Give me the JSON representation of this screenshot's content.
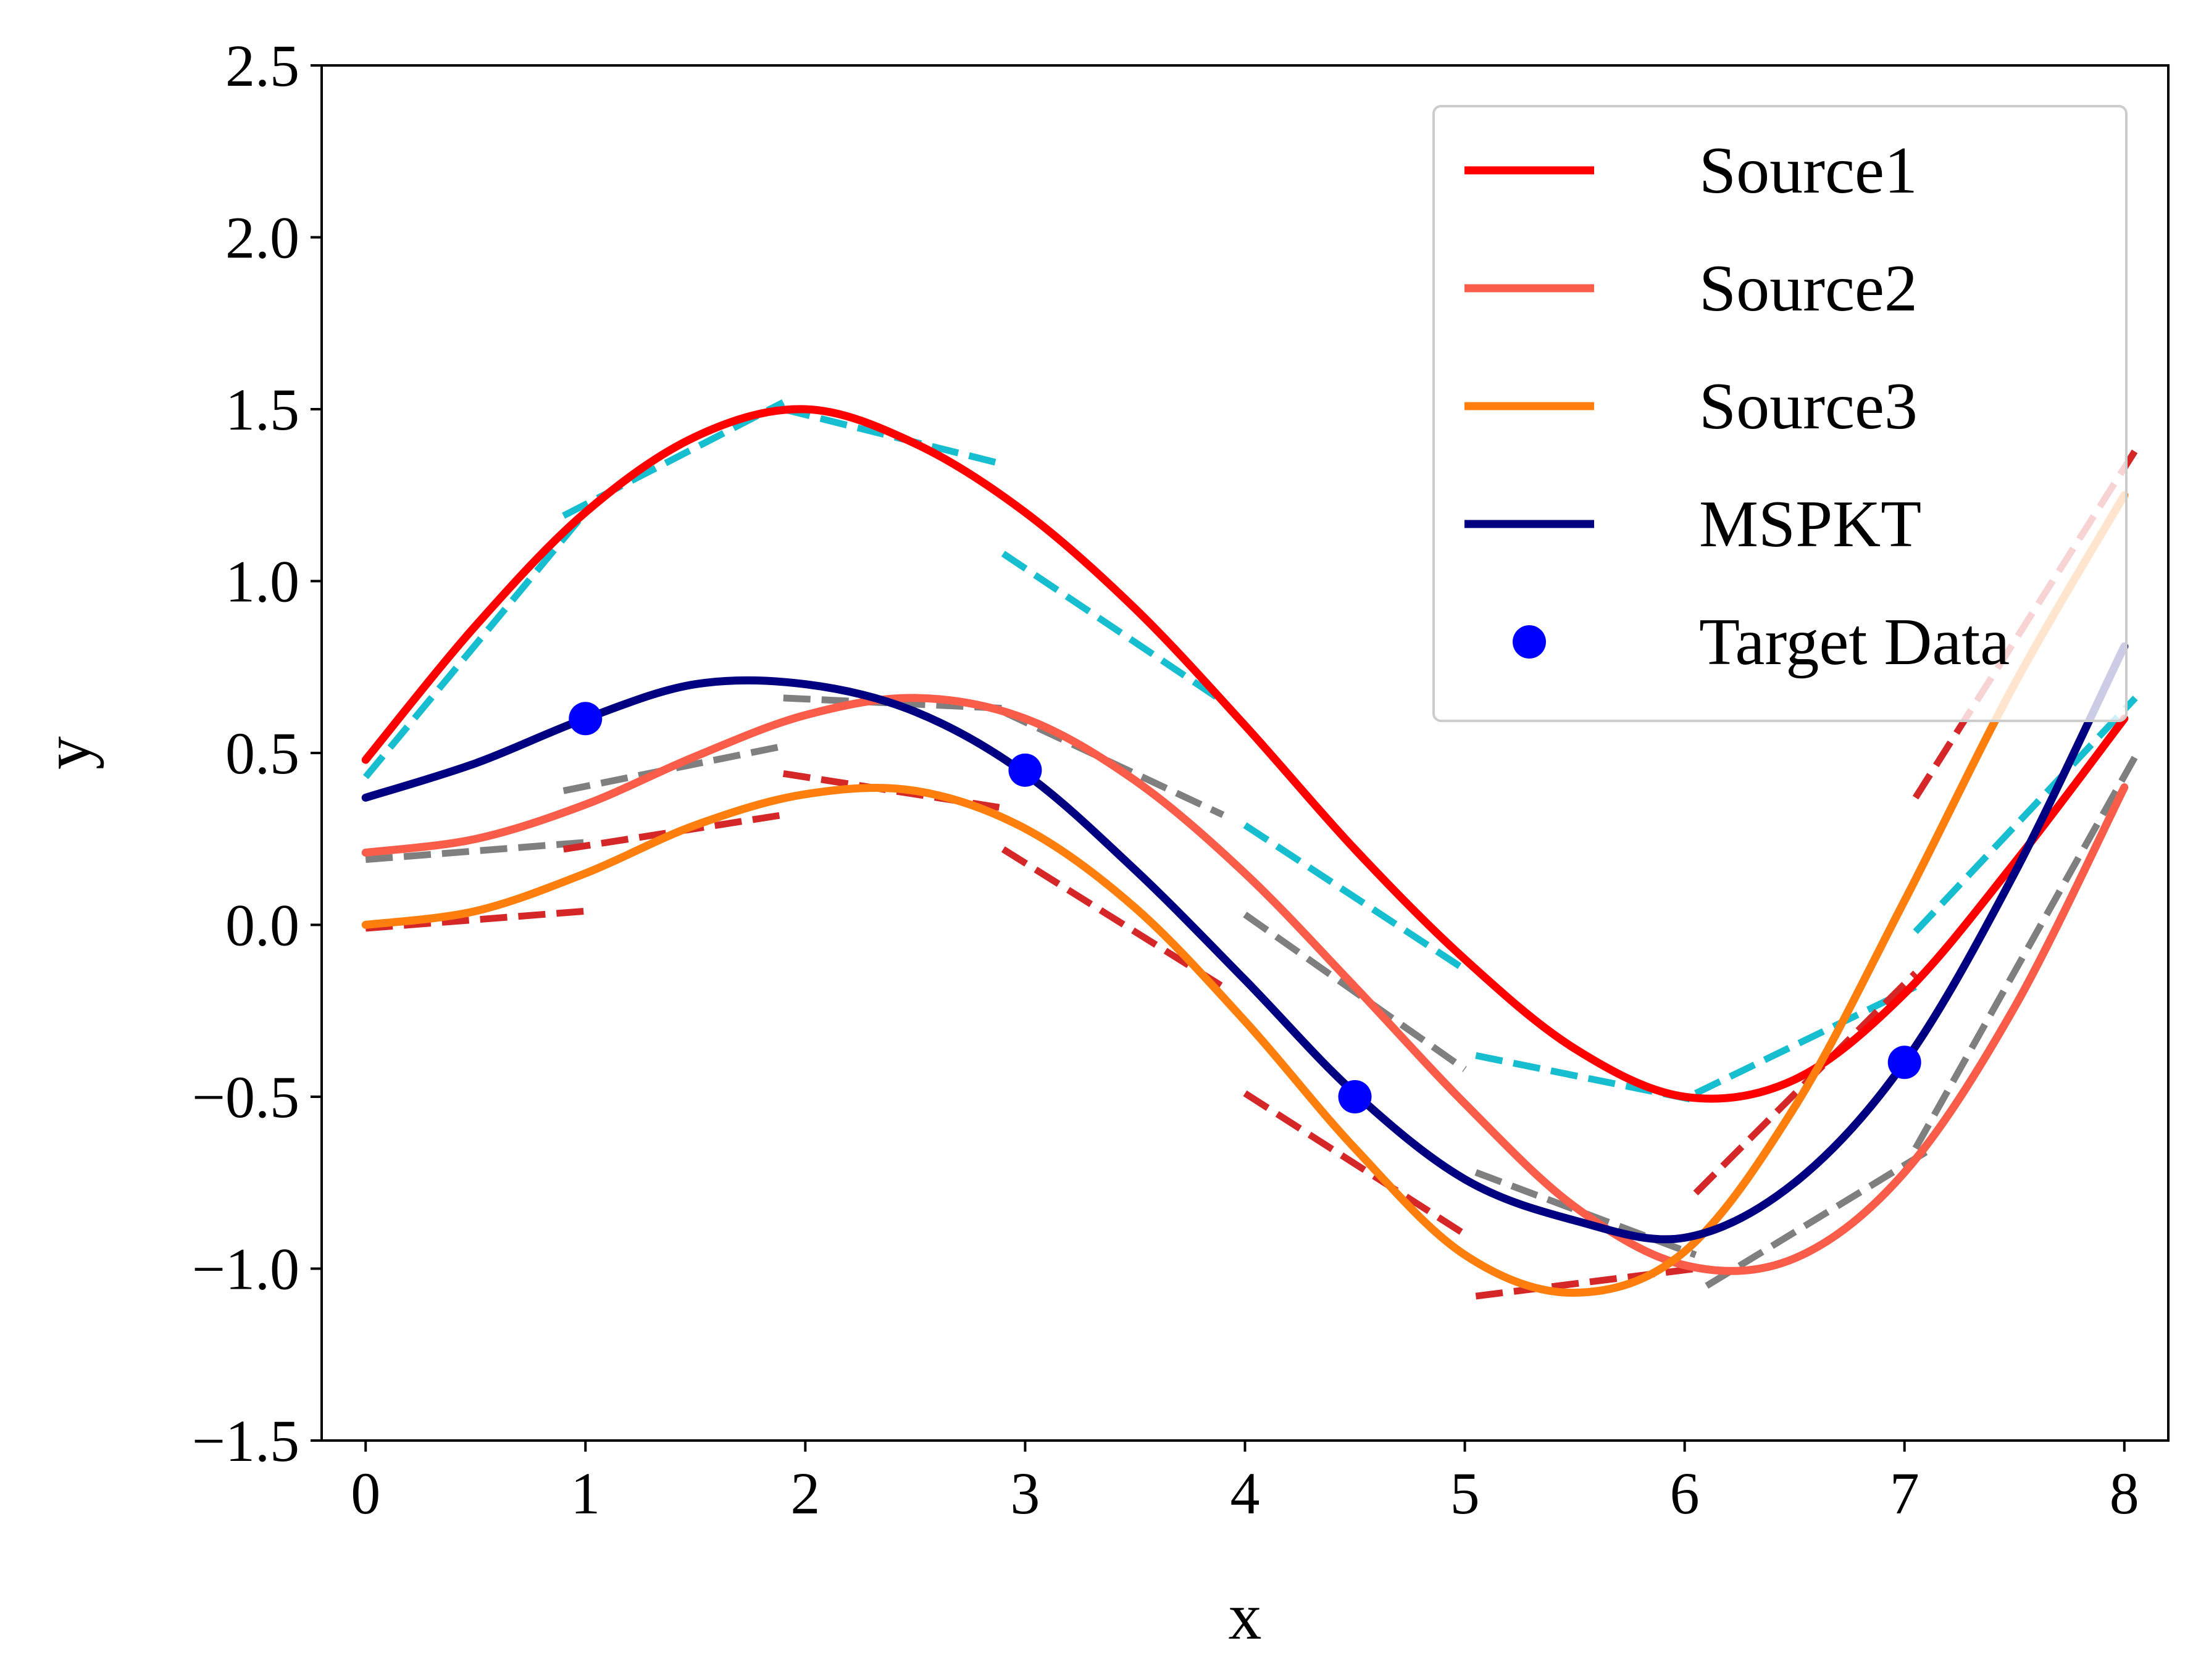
{
  "chart_data": {
    "type": "line",
    "title": "",
    "xlabel": "x",
    "ylabel": "y",
    "xlim": [
      -0.2,
      8.2
    ],
    "ylim": [
      -1.5,
      2.5
    ],
    "xticks": [
      "0",
      "1",
      "2",
      "3",
      "4",
      "5",
      "6",
      "7",
      "8"
    ],
    "yticks": [
      "−1.5",
      "−1.0",
      "−0.5",
      "0.0",
      "0.5",
      "1.0",
      "1.5",
      "2.0",
      "2.5"
    ],
    "grid": false,
    "legend_position": "top-right",
    "series": [
      {
        "name": "Source1",
        "color": "#ff0000",
        "style": "solid",
        "x": [
          0,
          0.5,
          1,
          1.5,
          2,
          2.5,
          3,
          3.5,
          4,
          4.5,
          5,
          5.5,
          6,
          6.5,
          7,
          7.5,
          8
        ],
        "y": [
          0.48,
          0.87,
          1.2,
          1.42,
          1.5,
          1.4,
          1.2,
          0.92,
          0.58,
          0.22,
          -0.1,
          -0.36,
          -0.5,
          -0.45,
          -0.2,
          0.18,
          0.6
        ]
      },
      {
        "name": "Source2",
        "color": "#f95d4a",
        "style": "solid",
        "x": [
          0,
          0.5,
          1,
          1.5,
          2,
          2.5,
          3,
          3.5,
          4,
          4.5,
          5,
          5.5,
          6,
          6.5,
          7,
          7.5,
          8
        ],
        "y": [
          0.21,
          0.25,
          0.35,
          0.49,
          0.61,
          0.66,
          0.6,
          0.42,
          0.15,
          -0.18,
          -0.52,
          -0.82,
          -0.99,
          -0.97,
          -0.72,
          -0.24,
          0.4
        ]
      },
      {
        "name": "Source3",
        "color": "#ff7f0e",
        "style": "solid",
        "x": [
          0,
          0.5,
          1,
          1.5,
          2,
          2.5,
          3,
          3.5,
          4,
          4.5,
          5,
          5.5,
          6,
          6.5,
          7,
          7.5,
          8
        ],
        "y": [
          0.0,
          0.04,
          0.15,
          0.29,
          0.38,
          0.39,
          0.28,
          0.05,
          -0.28,
          -0.65,
          -0.96,
          -1.07,
          -0.95,
          -0.53,
          0.07,
          0.7,
          1.25
        ]
      },
      {
        "name": "MSPKT",
        "color": "#000080",
        "style": "solid",
        "x": [
          0,
          0.5,
          1,
          1.5,
          2,
          2.5,
          3,
          3.5,
          4,
          4.5,
          5,
          5.5,
          6,
          6.5,
          7,
          7.5,
          8
        ],
        "y": [
          0.37,
          0.47,
          0.6,
          0.7,
          0.7,
          0.62,
          0.44,
          0.16,
          -0.16,
          -0.49,
          -0.74,
          -0.86,
          -0.91,
          -0.75,
          -0.4,
          0.15,
          0.81
        ]
      }
    ],
    "scatter": {
      "name": "Target Data",
      "color": "#0000ff",
      "x": [
        1,
        3,
        4.5,
        7
      ],
      "y": [
        0.6,
        0.45,
        -0.5,
        -0.4
      ]
    },
    "dashed_segments": [
      {
        "color": "#17becf",
        "x": [
          0,
          1
        ],
        "y": [
          0.43,
          1.2
        ]
      },
      {
        "color": "#17becf",
        "x": [
          0.9,
          1.9
        ],
        "y": [
          1.19,
          1.52
        ]
      },
      {
        "color": "#17becf",
        "x": [
          1.9,
          2.9
        ],
        "y": [
          1.5,
          1.34
        ]
      },
      {
        "color": "#17becf",
        "x": [
          2.9,
          3.9
        ],
        "y": [
          1.08,
          0.65
        ]
      },
      {
        "color": "#17becf",
        "x": [
          4.0,
          5.0
        ],
        "y": [
          0.29,
          -0.13
        ]
      },
      {
        "color": "#17becf",
        "x": [
          5.05,
          6.05
        ],
        "y": [
          -0.38,
          -0.51
        ]
      },
      {
        "color": "#17becf",
        "x": [
          6.05,
          7.05
        ],
        "y": [
          -0.49,
          -0.18
        ]
      },
      {
        "color": "#17becf",
        "x": [
          7.05,
          8.05
        ],
        "y": [
          -0.02,
          0.66
        ]
      },
      {
        "color": "#7f7f7f",
        "x": [
          0,
          1
        ],
        "y": [
          0.19,
          0.24
        ]
      },
      {
        "color": "#7f7f7f",
        "x": [
          0.9,
          1.9
        ],
        "y": [
          0.39,
          0.52
        ]
      },
      {
        "color": "#7f7f7f",
        "x": [
          1.9,
          2.9
        ],
        "y": [
          0.66,
          0.63
        ]
      },
      {
        "color": "#7f7f7f",
        "x": [
          2.9,
          3.9
        ],
        "y": [
          0.62,
          0.32
        ]
      },
      {
        "color": "#7f7f7f",
        "x": [
          4.0,
          5.0
        ],
        "y": [
          0.03,
          -0.42
        ]
      },
      {
        "color": "#7f7f7f",
        "x": [
          5.05,
          6.05
        ],
        "y": [
          -0.72,
          -0.96
        ]
      },
      {
        "color": "#7f7f7f",
        "x": [
          6.1,
          7.1
        ],
        "y": [
          -1.05,
          -0.66
        ]
      },
      {
        "color": "#7f7f7f",
        "x": [
          7.05,
          8.05
        ],
        "y": [
          -0.65,
          0.49
        ]
      },
      {
        "color": "#d62728",
        "x": [
          0,
          1
        ],
        "y": [
          -0.01,
          0.04
        ]
      },
      {
        "color": "#d62728",
        "x": [
          0.9,
          1.9
        ],
        "y": [
          0.22,
          0.32
        ]
      },
      {
        "color": "#d62728",
        "x": [
          1.9,
          2.9
        ],
        "y": [
          0.44,
          0.34
        ]
      },
      {
        "color": "#d62728",
        "x": [
          2.9,
          3.9
        ],
        "y": [
          0.22,
          -0.18
        ]
      },
      {
        "color": "#d62728",
        "x": [
          4.0,
          5.0
        ],
        "y": [
          -0.49,
          -0.9
        ]
      },
      {
        "color": "#d62728",
        "x": [
          5.05,
          6.05
        ],
        "y": [
          -1.08,
          -1.0
        ]
      },
      {
        "color": "#d62728",
        "x": [
          6.05,
          7.05
        ],
        "y": [
          -0.78,
          -0.14
        ]
      },
      {
        "color": "#d62728",
        "x": [
          7.05,
          8.05
        ],
        "y": [
          0.37,
          1.38
        ]
      }
    ]
  },
  "legend": {
    "items": [
      {
        "label": "Source1",
        "color": "#ff0000",
        "kind": "line"
      },
      {
        "label": "Source2",
        "color": "#f95d4a",
        "kind": "line"
      },
      {
        "label": "Source3",
        "color": "#ff7f0e",
        "kind": "line"
      },
      {
        "label": "MSPKT",
        "color": "#000080",
        "kind": "line"
      },
      {
        "label": "Target Data",
        "color": "#0000ff",
        "kind": "marker"
      }
    ]
  }
}
